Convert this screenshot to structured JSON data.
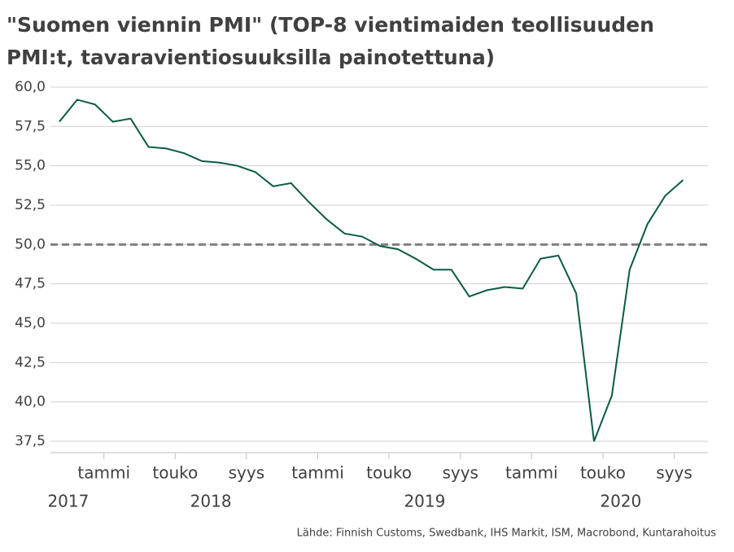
{
  "chart_data": {
    "type": "line",
    "title_lines": [
      "\"Suomen viennin PMI\" (TOP-8 vientimaiden teollisuuden",
      "PMI:t, tavaravientiosuuksilla painotettuna)"
    ],
    "source": "Lähde: Finnish Customs, Swedbank, IHS Markit, ISM, Macrobond, Kuntarahoitus",
    "categories": [
      null,
      null,
      null,
      "tammi",
      null,
      null,
      null,
      "touko",
      null,
      null,
      null,
      "syys",
      null,
      null,
      null,
      "tammi",
      null,
      null,
      null,
      "touko",
      null,
      null,
      null,
      "syys",
      null,
      null,
      null,
      "tammi",
      null,
      null,
      null,
      "touko",
      null,
      null,
      null,
      "syys"
    ],
    "year_labels": [
      "2017",
      null,
      null,
      null,
      null,
      null,
      null,
      null,
      "2018",
      null,
      null,
      null,
      null,
      null,
      null,
      null,
      null,
      null,
      null,
      null,
      "2019",
      null,
      null,
      null,
      null,
      null,
      null,
      null,
      null,
      null,
      null,
      "2020",
      null,
      null,
      null,
      null
    ],
    "series": [
      {
        "color": "#0b5a45",
        "values": [
          57.8,
          59.2,
          58.9,
          57.8,
          58.0,
          56.2,
          56.1,
          55.8,
          55.3,
          55.2,
          55.0,
          54.6,
          53.7,
          53.9,
          52.7,
          51.6,
          50.7,
          50.5,
          49.9,
          49.7,
          49.1,
          48.4,
          48.4,
          46.7,
          47.1,
          47.3,
          47.2,
          49.1,
          49.3,
          46.9,
          37.5,
          40.4,
          48.4,
          51.3,
          53.1,
          54.1
        ]
      }
    ],
    "reference_line": 50,
    "ylim": [
      37.5,
      60
    ],
    "yticks": [
      {
        "value": 37.5,
        "label": "37,5"
      },
      {
        "value": 40,
        "label": "40,0"
      },
      {
        "value": 42.5,
        "label": "42,5"
      },
      {
        "value": 45,
        "label": "45,0"
      },
      {
        "value": 47.5,
        "label": "47,5"
      },
      {
        "value": 50,
        "label": "50,0"
      },
      {
        "value": 52.5,
        "label": "52,5"
      },
      {
        "value": 55,
        "label": "55,0"
      },
      {
        "value": 57.5,
        "label": "57,5"
      },
      {
        "value": 60,
        "label": "60,0"
      }
    ],
    "grid": true
  }
}
